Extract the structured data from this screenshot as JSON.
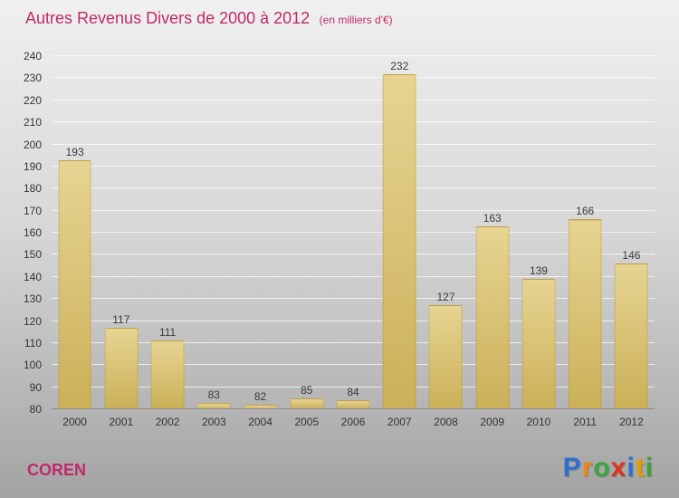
{
  "title": {
    "main": "Autres Revenus Divers de 2000 à 2012",
    "unit": "(en milliers d'€)"
  },
  "footer": {
    "company": "COREN"
  },
  "logo": {
    "letters": [
      {
        "char": "P",
        "color": "#2e6fd0"
      },
      {
        "char": "r",
        "color": "#f08519"
      },
      {
        "char": "o",
        "color": "#3aa53c"
      },
      {
        "char": "x",
        "color": "#e0301e"
      },
      {
        "char": "i",
        "color": "#2e6fd0"
      },
      {
        "char": "t",
        "color": "#e0a000"
      },
      {
        "char": "i",
        "color": "#3aa53c"
      }
    ]
  },
  "colors": {
    "title": "#c02a6a",
    "bar_top": "#e6d492",
    "bar_bottom": "#cbb058",
    "background_top": "#f0f0f0",
    "background_bottom": "#a3a3a3"
  },
  "chart_data": {
    "type": "bar",
    "title": "Autres Revenus Divers de 2000 à 2012 (en milliers d'€)",
    "categories": [
      "2000",
      "2001",
      "2002",
      "2003",
      "2004",
      "2005",
      "2006",
      "2007",
      "2008",
      "2009",
      "2010",
      "2011",
      "2012"
    ],
    "values": [
      193,
      117,
      111,
      83,
      82,
      85,
      84,
      232,
      127,
      163,
      139,
      166,
      146
    ],
    "xlabel": "",
    "ylabel": "",
    "ylim": [
      80,
      240
    ],
    "ytick_step": 10,
    "grid": true,
    "legend": "none"
  }
}
